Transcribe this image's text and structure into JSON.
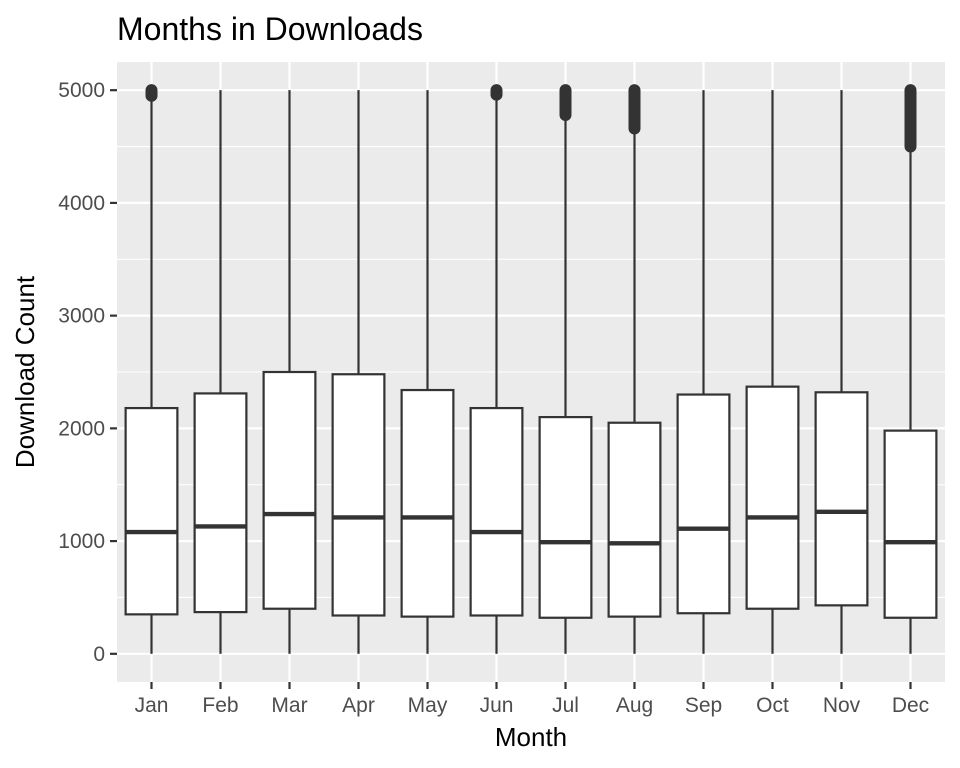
{
  "chart_data": {
    "type": "boxplot",
    "title": "Months in Downloads",
    "xlabel": "Month",
    "ylabel": "Download Count",
    "ylim": [
      -250,
      5250
    ],
    "yticks": [
      0,
      1000,
      2000,
      3000,
      4000,
      5000
    ],
    "grid": true,
    "legend": "none",
    "categories": [
      "Jan",
      "Feb",
      "Mar",
      "Apr",
      "May",
      "Jun",
      "Jul",
      "Aug",
      "Sep",
      "Oct",
      "Nov",
      "Dec"
    ],
    "boxes": [
      {
        "category": "Jan",
        "whisker_low": 0,
        "q1": 350,
        "median": 1080,
        "q3": 2180,
        "whisker_high": 4930,
        "outliers_min": 4950,
        "outliers_max": 5000
      },
      {
        "category": "Feb",
        "whisker_low": 0,
        "q1": 370,
        "median": 1130,
        "q3": 2310,
        "whisker_high": 5000,
        "outliers_min": null,
        "outliers_max": null
      },
      {
        "category": "Mar",
        "whisker_low": 0,
        "q1": 400,
        "median": 1240,
        "q3": 2500,
        "whisker_high": 5000,
        "outliers_min": null,
        "outliers_max": null
      },
      {
        "category": "Apr",
        "whisker_low": 0,
        "q1": 340,
        "median": 1210,
        "q3": 2480,
        "whisker_high": 5000,
        "outliers_min": null,
        "outliers_max": null
      },
      {
        "category": "May",
        "whisker_low": 0,
        "q1": 330,
        "median": 1210,
        "q3": 2340,
        "whisker_high": 5000,
        "outliers_min": null,
        "outliers_max": null
      },
      {
        "category": "Jun",
        "whisker_low": 0,
        "q1": 340,
        "median": 1080,
        "q3": 2180,
        "whisker_high": 4940,
        "outliers_min": 4960,
        "outliers_max": 5000
      },
      {
        "category": "Jul",
        "whisker_low": 0,
        "q1": 320,
        "median": 990,
        "q3": 2100,
        "whisker_high": 4740,
        "outliers_min": 4780,
        "outliers_max": 5000
      },
      {
        "category": "Aug",
        "whisker_low": 0,
        "q1": 330,
        "median": 980,
        "q3": 2050,
        "whisker_high": 4620,
        "outliers_min": 4660,
        "outliers_max": 5000
      },
      {
        "category": "Sep",
        "whisker_low": 0,
        "q1": 360,
        "median": 1110,
        "q3": 2300,
        "whisker_high": 5000,
        "outliers_min": null,
        "outliers_max": null
      },
      {
        "category": "Oct",
        "whisker_low": 0,
        "q1": 400,
        "median": 1210,
        "q3": 2370,
        "whisker_high": 5000,
        "outliers_min": null,
        "outliers_max": null
      },
      {
        "category": "Nov",
        "whisker_low": 0,
        "q1": 430,
        "median": 1260,
        "q3": 2320,
        "whisker_high": 5000,
        "outliers_min": null,
        "outliers_max": null
      },
      {
        "category": "Dec",
        "whisker_low": 0,
        "q1": 320,
        "median": 990,
        "q3": 1980,
        "whisker_high": 4460,
        "outliers_min": 4500,
        "outliers_max": 5000
      }
    ],
    "colors": {
      "panel_background": "#EBEBEB",
      "grid_line": "#FFFFFF",
      "box_fill": "#FFFFFF",
      "box_stroke": "#333333",
      "tick_label": "#4D4D4D",
      "tick_mark": "#333333"
    }
  }
}
